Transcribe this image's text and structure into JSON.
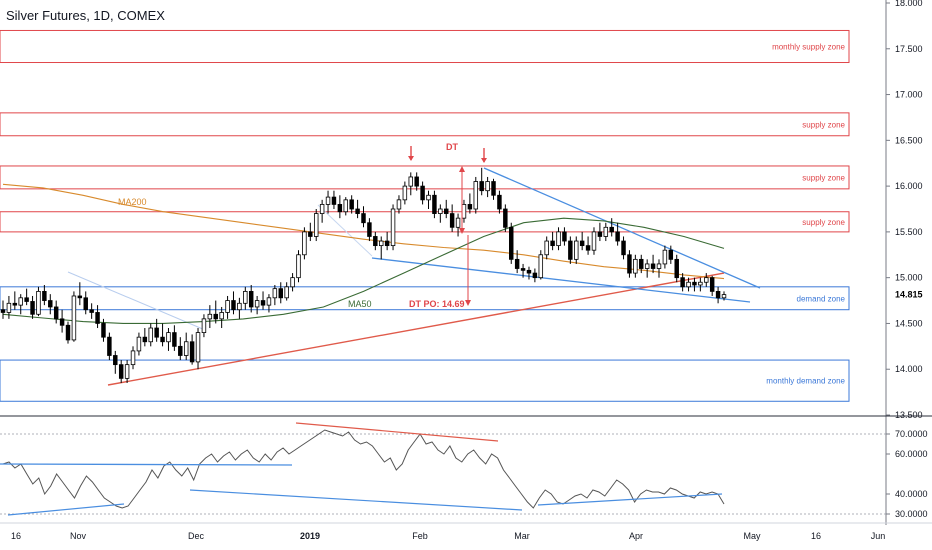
{
  "title": "Silver Futures, 1D, COMEX",
  "colors": {
    "up": "#ffffff",
    "down": "#000000",
    "zone_red": "#e0464a",
    "zone_blue": "#3b78d8",
    "ma200": "#d88a2c",
    "ma50": "#3a6b35",
    "trend_red": "#e05a4a",
    "channel_blue": "#4a8ee0",
    "price_tag": "#000000"
  },
  "chart_data": [
    {
      "type": "candlestick",
      "symbol": "Silver Futures",
      "timeframe": "1D",
      "exchange": "COMEX",
      "ylim": [
        13.5,
        18.0
      ],
      "y_ticks": [
        13.5,
        14.0,
        14.5,
        15.0,
        15.5,
        16.0,
        16.5,
        17.0,
        17.5,
        18.0
      ],
      "y_tick_labels": [
        "13.500",
        "14.000",
        "14.500",
        "15.000",
        "15.500",
        "16.000",
        "16.500",
        "17.000",
        "17.500",
        "18.000"
      ],
      "x_tick_labels": [
        "16",
        "Nov",
        "Dec",
        "2019",
        "Feb",
        "Mar",
        "Apr",
        "May",
        "16",
        "Jun"
      ],
      "last_price_label": "14.815",
      "last_price": 14.815,
      "ohlc": [
        [
          14.65,
          14.75,
          14.55,
          14.62
        ],
        [
          14.62,
          14.8,
          14.55,
          14.72
        ],
        [
          14.72,
          14.85,
          14.65,
          14.7
        ],
        [
          14.7,
          14.82,
          14.6,
          14.78
        ],
        [
          14.78,
          14.88,
          14.7,
          14.74
        ],
        [
          14.74,
          14.8,
          14.55,
          14.6
        ],
        [
          14.6,
          14.9,
          14.58,
          14.85
        ],
        [
          14.85,
          14.92,
          14.7,
          14.75
        ],
        [
          14.75,
          14.82,
          14.6,
          14.68
        ],
        [
          14.68,
          14.75,
          14.5,
          14.55
        ],
        [
          14.55,
          14.65,
          14.4,
          14.48
        ],
        [
          14.48,
          14.52,
          14.28,
          14.32
        ],
        [
          14.32,
          14.85,
          14.3,
          14.8
        ],
        [
          14.8,
          14.95,
          14.7,
          14.78
        ],
        [
          14.78,
          14.85,
          14.6,
          14.65
        ],
        [
          14.65,
          14.72,
          14.55,
          14.62
        ],
        [
          14.62,
          14.7,
          14.45,
          14.5
        ],
        [
          14.5,
          14.55,
          14.3,
          14.35
        ],
        [
          14.35,
          14.4,
          14.1,
          14.15
        ],
        [
          14.15,
          14.2,
          13.95,
          14.05
        ],
        [
          14.05,
          14.1,
          13.85,
          13.9
        ],
        [
          13.9,
          14.1,
          13.85,
          14.05
        ],
        [
          14.05,
          14.25,
          14.0,
          14.2
        ],
        [
          14.2,
          14.4,
          14.15,
          14.35
        ],
        [
          14.35,
          14.45,
          14.25,
          14.3
        ],
        [
          14.3,
          14.5,
          14.25,
          14.45
        ],
        [
          14.45,
          14.55,
          14.3,
          14.35
        ],
        [
          14.35,
          14.5,
          14.25,
          14.3
        ],
        [
          14.3,
          14.45,
          14.2,
          14.4
        ],
        [
          14.4,
          14.48,
          14.2,
          14.25
        ],
        [
          14.25,
          14.35,
          14.1,
          14.15
        ],
        [
          14.15,
          14.4,
          14.1,
          14.3
        ],
        [
          14.3,
          14.38,
          14.05,
          14.08
        ],
        [
          14.08,
          14.45,
          14.0,
          14.4
        ],
        [
          14.4,
          14.6,
          14.35,
          14.55
        ],
        [
          14.55,
          14.7,
          14.45,
          14.6
        ],
        [
          14.6,
          14.75,
          14.5,
          14.55
        ],
        [
          14.55,
          14.68,
          14.45,
          14.62
        ],
        [
          14.62,
          14.8,
          14.55,
          14.75
        ],
        [
          14.75,
          14.85,
          14.6,
          14.65
        ],
        [
          14.65,
          14.78,
          14.55,
          14.72
        ],
        [
          14.72,
          14.9,
          14.65,
          14.85
        ],
        [
          14.85,
          14.92,
          14.62,
          14.68
        ],
        [
          14.68,
          14.8,
          14.6,
          14.75
        ],
        [
          14.75,
          14.85,
          14.65,
          14.7
        ],
        [
          14.7,
          14.82,
          14.62,
          14.78
        ],
        [
          14.78,
          14.92,
          14.7,
          14.88
        ],
        [
          14.88,
          14.95,
          14.72,
          14.78
        ],
        [
          14.78,
          14.95,
          14.75,
          14.9
        ],
        [
          14.9,
          15.05,
          14.85,
          15.0
        ],
        [
          15.0,
          15.3,
          14.95,
          15.25
        ],
        [
          15.25,
          15.55,
          15.2,
          15.5
        ],
        [
          15.5,
          15.6,
          15.4,
          15.45
        ],
        [
          15.45,
          15.75,
          15.4,
          15.7
        ],
        [
          15.7,
          15.85,
          15.6,
          15.8
        ],
        [
          15.8,
          15.95,
          15.7,
          15.88
        ],
        [
          15.88,
          15.95,
          15.75,
          15.8
        ],
        [
          15.8,
          15.9,
          15.65,
          15.72
        ],
        [
          15.72,
          15.88,
          15.68,
          15.85
        ],
        [
          15.85,
          15.9,
          15.7,
          15.75
        ],
        [
          15.75,
          15.85,
          15.65,
          15.7
        ],
        [
          15.7,
          15.78,
          15.55,
          15.6
        ],
        [
          15.6,
          15.65,
          15.4,
          15.45
        ],
        [
          15.45,
          15.5,
          15.3,
          15.35
        ],
        [
          15.35,
          15.45,
          15.2,
          15.4
        ],
        [
          15.4,
          15.5,
          15.3,
          15.35
        ],
        [
          15.35,
          15.8,
          15.3,
          15.75
        ],
        [
          15.75,
          15.9,
          15.7,
          15.85
        ],
        [
          15.85,
          16.05,
          15.8,
          16.0
        ],
        [
          16.0,
          16.15,
          15.9,
          16.1
        ],
        [
          16.1,
          16.15,
          15.95,
          16.0
        ],
        [
          16.0,
          16.05,
          15.8,
          15.85
        ],
        [
          15.85,
          15.95,
          15.75,
          15.9
        ],
        [
          15.9,
          15.95,
          15.65,
          15.7
        ],
        [
          15.7,
          15.8,
          15.6,
          15.75
        ],
        [
          15.75,
          15.85,
          15.65,
          15.7
        ],
        [
          15.7,
          15.8,
          15.5,
          15.55
        ],
        [
          15.55,
          15.7,
          15.45,
          15.65
        ],
        [
          15.65,
          15.85,
          15.6,
          15.8
        ],
        [
          15.8,
          15.92,
          15.7,
          15.75
        ],
        [
          15.75,
          16.1,
          15.7,
          16.05
        ],
        [
          16.05,
          16.2,
          15.9,
          15.95
        ],
        [
          15.95,
          16.1,
          15.88,
          16.05
        ],
        [
          16.05,
          16.08,
          15.85,
          15.9
        ],
        [
          15.9,
          15.95,
          15.7,
          15.75
        ],
        [
          15.75,
          15.8,
          15.5,
          15.55
        ],
        [
          15.55,
          15.6,
          15.15,
          15.2
        ],
        [
          15.2,
          15.3,
          15.05,
          15.1
        ],
        [
          15.1,
          15.15,
          15.0,
          15.08
        ],
        [
          15.08,
          15.12,
          14.98,
          15.05
        ],
        [
          15.05,
          15.1,
          14.95,
          15.0
        ],
        [
          15.0,
          15.3,
          14.98,
          15.25
        ],
        [
          15.25,
          15.45,
          15.2,
          15.4
        ],
        [
          15.4,
          15.5,
          15.3,
          15.35
        ],
        [
          15.35,
          15.55,
          15.3,
          15.5
        ],
        [
          15.5,
          15.55,
          15.35,
          15.4
        ],
        [
          15.4,
          15.45,
          15.15,
          15.2
        ],
        [
          15.2,
          15.45,
          15.15,
          15.4
        ],
        [
          15.4,
          15.5,
          15.3,
          15.35
        ],
        [
          15.35,
          15.45,
          15.25,
          15.3
        ],
        [
          15.3,
          15.55,
          15.25,
          15.5
        ],
        [
          15.5,
          15.6,
          15.4,
          15.45
        ],
        [
          15.45,
          15.6,
          15.4,
          15.55
        ],
        [
          15.55,
          15.65,
          15.45,
          15.5
        ],
        [
          15.5,
          15.6,
          15.35,
          15.4
        ],
        [
          15.4,
          15.45,
          15.2,
          15.25
        ],
        [
          15.25,
          15.3,
          15.0,
          15.05
        ],
        [
          15.05,
          15.25,
          15.0,
          15.2
        ],
        [
          15.2,
          15.25,
          15.05,
          15.1
        ],
        [
          15.1,
          15.2,
          15.0,
          15.15
        ],
        [
          15.15,
          15.25,
          15.05,
          15.1
        ],
        [
          15.1,
          15.2,
          15.0,
          15.15
        ],
        [
          15.15,
          15.35,
          15.1,
          15.3
        ],
        [
          15.3,
          15.35,
          15.15,
          15.2
        ],
        [
          15.2,
          15.25,
          14.95,
          15.0
        ],
        [
          15.0,
          15.05,
          14.85,
          14.9
        ],
        [
          14.9,
          15.0,
          14.85,
          14.95
        ],
        [
          14.95,
          15.0,
          14.85,
          14.92
        ],
        [
          14.92,
          15.0,
          14.85,
          14.95
        ],
        [
          14.95,
          15.05,
          14.9,
          15.0
        ],
        [
          15.0,
          15.02,
          14.8,
          14.85
        ],
        [
          14.85,
          14.9,
          14.72,
          14.78
        ],
        [
          14.78,
          14.85,
          14.75,
          14.815
        ]
      ],
      "moving_averages": [
        {
          "name": "MA200",
          "values": [
            16.02,
            15.98,
            15.9,
            15.8,
            15.72,
            15.66,
            15.6,
            15.54,
            15.48,
            15.42,
            15.37,
            15.33,
            15.3,
            15.25,
            15.18,
            15.12,
            15.08,
            15.03,
            14.99
          ]
        },
        {
          "name": "MA50",
          "values": [
            14.6,
            14.56,
            14.52,
            14.5,
            14.5,
            14.52,
            14.55,
            14.6,
            14.68,
            14.85,
            15.05,
            15.25,
            15.45,
            15.6,
            15.65,
            15.62,
            15.55,
            15.45,
            15.32
          ]
        }
      ],
      "zones": [
        {
          "label": "monthly supply zone",
          "from": 17.35,
          "to": 17.7,
          "color": "red"
        },
        {
          "label": "supply zone",
          "from": 16.55,
          "to": 16.8,
          "color": "red"
        },
        {
          "label": "supply zone",
          "from": 15.97,
          "to": 16.22,
          "color": "red"
        },
        {
          "label": "supply zone",
          "from": 15.5,
          "to": 15.72,
          "color": "red"
        },
        {
          "label": "demand zone",
          "from": 14.65,
          "to": 14.9,
          "color": "blue"
        },
        {
          "label": "monthly demand zone",
          "from": 13.65,
          "to": 14.1,
          "color": "blue"
        }
      ],
      "annotations": [
        {
          "text": "DT"
        },
        {
          "text": "DT PO: 14.69"
        },
        {
          "text": "MA200"
        },
        {
          "text": "MA50"
        }
      ],
      "legend": "none",
      "grid": false
    },
    {
      "type": "line",
      "name": "oscillator",
      "ylim": [
        27.0,
        77.0
      ],
      "y_ticks": [
        30,
        40,
        60,
        70
      ],
      "y_tick_labels": [
        "30.0000",
        "40.0000",
        "60.0000",
        "70.0000"
      ],
      "guide_levels": [
        70,
        30
      ],
      "values": [
        55,
        56,
        53,
        55,
        50,
        45,
        48,
        40,
        44,
        50,
        46,
        42,
        38,
        44,
        49,
        46,
        42,
        38,
        36,
        34,
        33,
        34,
        38,
        42,
        46,
        52,
        48,
        54,
        56,
        52,
        49,
        53,
        47,
        55,
        58,
        60,
        56,
        59,
        61,
        57,
        60,
        62,
        58,
        56,
        60,
        57,
        61,
        63,
        60,
        62,
        64,
        66,
        68,
        70,
        72,
        71,
        70,
        69,
        71,
        67,
        65,
        66,
        64,
        60,
        56,
        58,
        52,
        55,
        62,
        66,
        70,
        65,
        66,
        62,
        60,
        64,
        58,
        56,
        60,
        62,
        58,
        55,
        60,
        58,
        52,
        48,
        44,
        40,
        36,
        33,
        38,
        42,
        40,
        36,
        35,
        37,
        39,
        40,
        38,
        42,
        41,
        39,
        43,
        47,
        45,
        42,
        36,
        40,
        42,
        41,
        41,
        40,
        43,
        42,
        40,
        39,
        38,
        41,
        40,
        41,
        40,
        35
      ]
    }
  ]
}
